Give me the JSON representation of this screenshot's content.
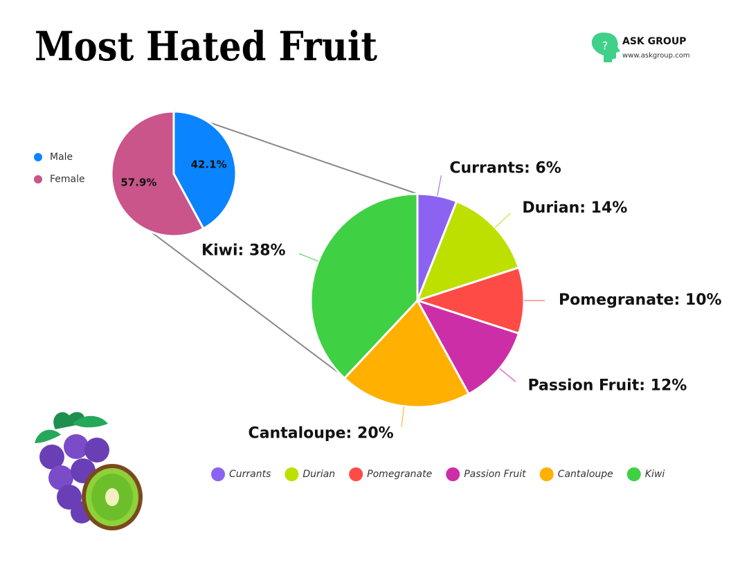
{
  "title": "Most Hated Fruit",
  "brand": {
    "name": "ASK GROUP",
    "url": "www.askgroup.com"
  },
  "chart_data": [
    {
      "type": "pie",
      "categories": [
        "Male",
        "Female"
      ],
      "values": [
        42.1,
        57.9
      ],
      "value_labels": [
        "42.1%",
        "57.9%"
      ],
      "colors": [
        "#0a84ff",
        "#c9558a"
      ],
      "legend": "left"
    },
    {
      "type": "pie",
      "categories": [
        "Currants",
        "Durian",
        "Pomegranate",
        "Passion Fruit",
        "Cantaloupe",
        "Kiwi"
      ],
      "values": [
        6,
        14,
        10,
        12,
        20,
        38
      ],
      "value_labels": [
        "Currants: 6%",
        "Durian: 14%",
        "Pomegranate: 10%",
        "Passion Fruit: 12%",
        "Cantaloupe: 20%",
        "Kiwi: 38%"
      ],
      "colors": [
        "#8b63f0",
        "#bde000",
        "#ff4b45",
        "#cc2ea8",
        "#ffb000",
        "#3fd044"
      ],
      "legend": "bottom"
    }
  ]
}
